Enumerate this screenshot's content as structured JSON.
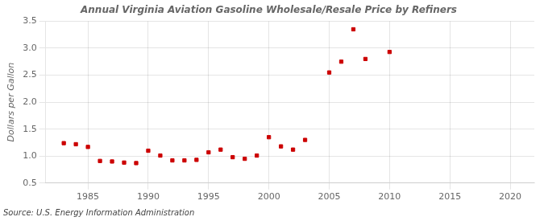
{
  "chart_data": {
    "type": "scatter",
    "title": "Annual Virginia Aviation Gasoline Wholesale/Resale Price by Refiners",
    "ylabel": "Dollars per Gallon",
    "source": "Source: U.S. Energy Information Administration",
    "x": [
      1983,
      1984,
      1985,
      1986,
      1987,
      1988,
      1989,
      1990,
      1991,
      1992,
      1993,
      1994,
      1995,
      1996,
      1997,
      1998,
      1999,
      2000,
      2001,
      2002,
      2003,
      2005,
      2006,
      2007,
      2008,
      2010
    ],
    "values": [
      1.24,
      1.22,
      1.17,
      0.91,
      0.9,
      0.88,
      0.87,
      1.1,
      1.01,
      0.92,
      0.92,
      0.93,
      1.07,
      1.12,
      0.98,
      0.95,
      1.01,
      1.35,
      1.18,
      1.12,
      1.3,
      2.55,
      2.75,
      3.35,
      2.8,
      2.93
    ],
    "color": "#cc0000",
    "marker": "square",
    "xlim": [
      1981.5,
      2022
    ],
    "xticks": [
      1985,
      1990,
      1995,
      2000,
      2005,
      2010,
      2015,
      2020
    ],
    "ylim": [
      0.5,
      3.5
    ],
    "yticks": [
      0.5,
      {
        "value": 1,
        "label": "1.0"
      },
      1.5,
      {
        "value": 2,
        "label": "2.0"
      },
      2.5,
      {
        "value": 3,
        "label": "3.0"
      },
      3.5
    ],
    "grid": true
  }
}
